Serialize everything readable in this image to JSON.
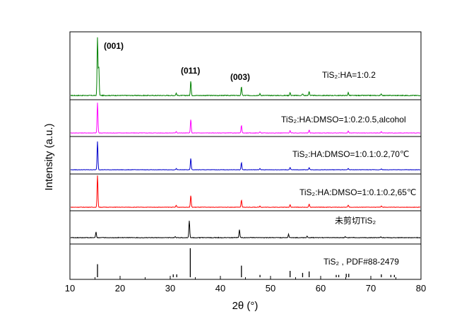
{
  "chart_data": {
    "type": "line",
    "xlabel": "2θ (°)",
    "ylabel": "Intensity (a.u.)",
    "xlim": [
      10,
      80
    ],
    "xticks": [
      10,
      20,
      30,
      40,
      50,
      60,
      70,
      80
    ],
    "annotations": [
      "(001)",
      "(011)",
      "(003)"
    ],
    "series": [
      {
        "name": "TiS₂:HA=1:0.2",
        "color": "#008000",
        "peaks": [
          {
            "x": 15.5,
            "h": 1.0
          },
          {
            "x": 15.75,
            "h": 0.5
          },
          {
            "x": 31.2,
            "h": 0.04
          },
          {
            "x": 34.1,
            "h": 0.25
          },
          {
            "x": 44.2,
            "h": 0.15
          },
          {
            "x": 47.9,
            "h": 0.03
          },
          {
            "x": 53.9,
            "h": 0.05
          },
          {
            "x": 56.4,
            "h": 0.03
          },
          {
            "x": 57.7,
            "h": 0.07
          },
          {
            "x": 65.5,
            "h": 0.05
          },
          {
            "x": 72.1,
            "h": 0.03
          }
        ]
      },
      {
        "name": "TiS₂:HA:DMSO=1:0.2:0.5,alcohol",
        "color": "#ff00ff",
        "peaks": [
          {
            "x": 15.5,
            "h": 1.0
          },
          {
            "x": 31.2,
            "h": 0.05
          },
          {
            "x": 34.1,
            "h": 0.45
          },
          {
            "x": 44.2,
            "h": 0.25
          },
          {
            "x": 47.9,
            "h": 0.04
          },
          {
            "x": 53.9,
            "h": 0.08
          },
          {
            "x": 57.7,
            "h": 0.1
          },
          {
            "x": 65.5,
            "h": 0.06
          },
          {
            "x": 72.1,
            "h": 0.04
          }
        ]
      },
      {
        "name": "TiS₂:HA:DMSO=1:0.1:0.2,70℃",
        "color": "#0000cc",
        "peaks": [
          {
            "x": 15.5,
            "h": 1.0
          },
          {
            "x": 31.2,
            "h": 0.04
          },
          {
            "x": 34.1,
            "h": 0.4
          },
          {
            "x": 44.2,
            "h": 0.25
          },
          {
            "x": 47.9,
            "h": 0.04
          },
          {
            "x": 53.9,
            "h": 0.08
          },
          {
            "x": 57.7,
            "h": 0.08
          },
          {
            "x": 65.5,
            "h": 0.05
          },
          {
            "x": 72.1,
            "h": 0.03
          }
        ]
      },
      {
        "name": "TiS₂:HA:DMSO=1:0.1:0.2,65℃",
        "color": "#ff0000",
        "peaks": [
          {
            "x": 15.5,
            "h": 1.0
          },
          {
            "x": 31.2,
            "h": 0.06
          },
          {
            "x": 34.1,
            "h": 0.37
          },
          {
            "x": 44.2,
            "h": 0.22
          },
          {
            "x": 47.9,
            "h": 0.04
          },
          {
            "x": 53.9,
            "h": 0.08
          },
          {
            "x": 57.7,
            "h": 0.1
          },
          {
            "x": 65.5,
            "h": 0.07
          },
          {
            "x": 72.1,
            "h": 0.04
          }
        ]
      },
      {
        "name": "未剪切TiS₂",
        "color": "#000000",
        "peaks": [
          {
            "x": 15.2,
            "h": 0.25
          },
          {
            "x": 31.0,
            "h": 0.05
          },
          {
            "x": 33.8,
            "h": 0.75
          },
          {
            "x": 43.8,
            "h": 0.35
          },
          {
            "x": 53.6,
            "h": 0.15
          },
          {
            "x": 57.3,
            "h": 0.06
          },
          {
            "x": 64.9,
            "h": 0.04
          },
          {
            "x": 72.0,
            "h": 0.03
          }
        ]
      },
      {
        "name": "TiS₂ , PDF#88-2479",
        "color": "#000000",
        "sticks": [
          {
            "x": 15.5,
            "h": 0.45
          },
          {
            "x": 30.6,
            "h": 0.1
          },
          {
            "x": 31.3,
            "h": 0.1
          },
          {
            "x": 34.0,
            "h": 1.0
          },
          {
            "x": 44.2,
            "h": 0.4
          },
          {
            "x": 47.9,
            "h": 0.08
          },
          {
            "x": 53.9,
            "h": 0.22
          },
          {
            "x": 56.4,
            "h": 0.15
          },
          {
            "x": 57.7,
            "h": 0.2
          },
          {
            "x": 63.1,
            "h": 0.08
          },
          {
            "x": 63.6,
            "h": 0.08
          },
          {
            "x": 65.1,
            "h": 0.12
          },
          {
            "x": 65.6,
            "h": 0.12
          },
          {
            "x": 72.1,
            "h": 0.1
          },
          {
            "x": 74.0,
            "h": 0.08
          },
          {
            "x": 74.7,
            "h": 0.08
          }
        ]
      }
    ]
  }
}
